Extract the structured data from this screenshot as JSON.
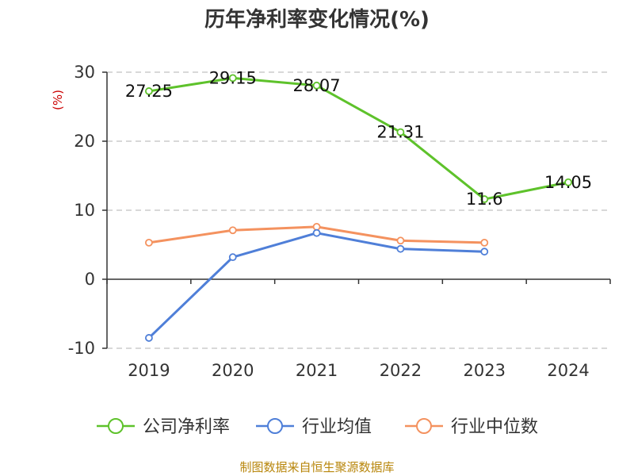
{
  "chart_data": {
    "type": "line",
    "title": "历年净利率变化情况(%)",
    "ylabel": "(%)",
    "xlabel": "",
    "categories": [
      "2019",
      "2020",
      "2021",
      "2022",
      "2023",
      "2024"
    ],
    "ylim": [
      -10,
      30
    ],
    "yticks": [
      -10,
      0,
      10,
      20,
      30
    ],
    "grid": true,
    "legend_position": "bottom",
    "series": [
      {
        "name": "公司净利率",
        "color": "#5ec22b",
        "values": [
          27.25,
          29.15,
          28.07,
          21.31,
          11.6,
          14.05
        ],
        "labels": [
          "27.25",
          "29.15",
          "28.07",
          "21.31",
          "11.6",
          "14.05"
        ]
      },
      {
        "name": "行业均值",
        "color": "#4f7fd8",
        "values": [
          -8.5,
          3.2,
          6.7,
          4.4,
          4.0,
          null
        ]
      },
      {
        "name": "行业中位数",
        "color": "#f4925f",
        "values": [
          5.3,
          7.1,
          7.6,
          5.6,
          5.3,
          null
        ]
      }
    ],
    "source": "制图数据来自恒生聚源数据库"
  }
}
